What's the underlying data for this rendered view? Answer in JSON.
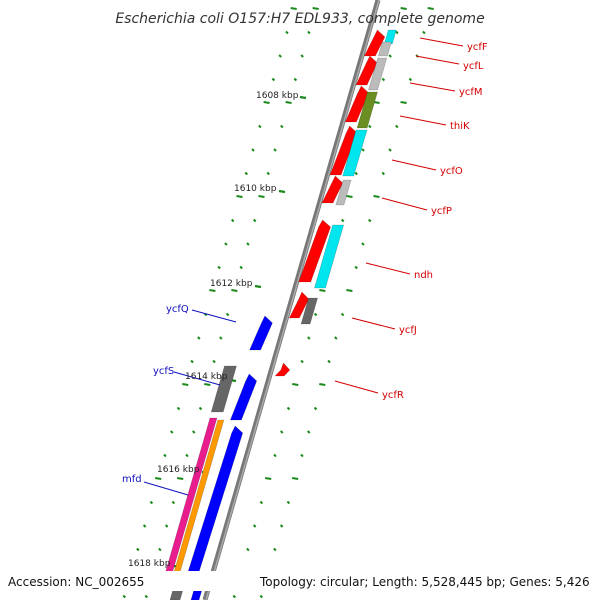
{
  "title": "Escherichia coli O157:H7 EDL933, complete genome",
  "footer": {
    "accession": "Accession: NC_002655",
    "topology": "Topology: circular; Length: 5,528,445 bp; Genes: 5,426"
  },
  "ruler_labels": [
    "1608 kbp",
    "1610 kbp",
    "1612 kbp",
    "1614 kbp",
    "1616 kbp",
    "1618 kbp"
  ],
  "genes_right": [
    "ycfF",
    "ycfL",
    "ycfM",
    "thiK",
    "ycfO",
    "ycfP",
    "ndh",
    "ycfJ",
    "ycfR"
  ],
  "genes_left": [
    "ycfQ",
    "ycfS",
    "mfd"
  ],
  "colors": {
    "forward_cds": "#ff0000",
    "reverse_cds": "#0000ff",
    "other_gene": "#666666",
    "light_gray": "#bbbbbb",
    "cyan": "#00e5ee",
    "olive": "#6b8e23",
    "magenta": "#e81c8c",
    "orange": "#ff9900",
    "backbone": "#888888",
    "ticks": "#1a8a1a",
    "label_red": "#d40000",
    "label_blue": "#1010c0"
  }
}
